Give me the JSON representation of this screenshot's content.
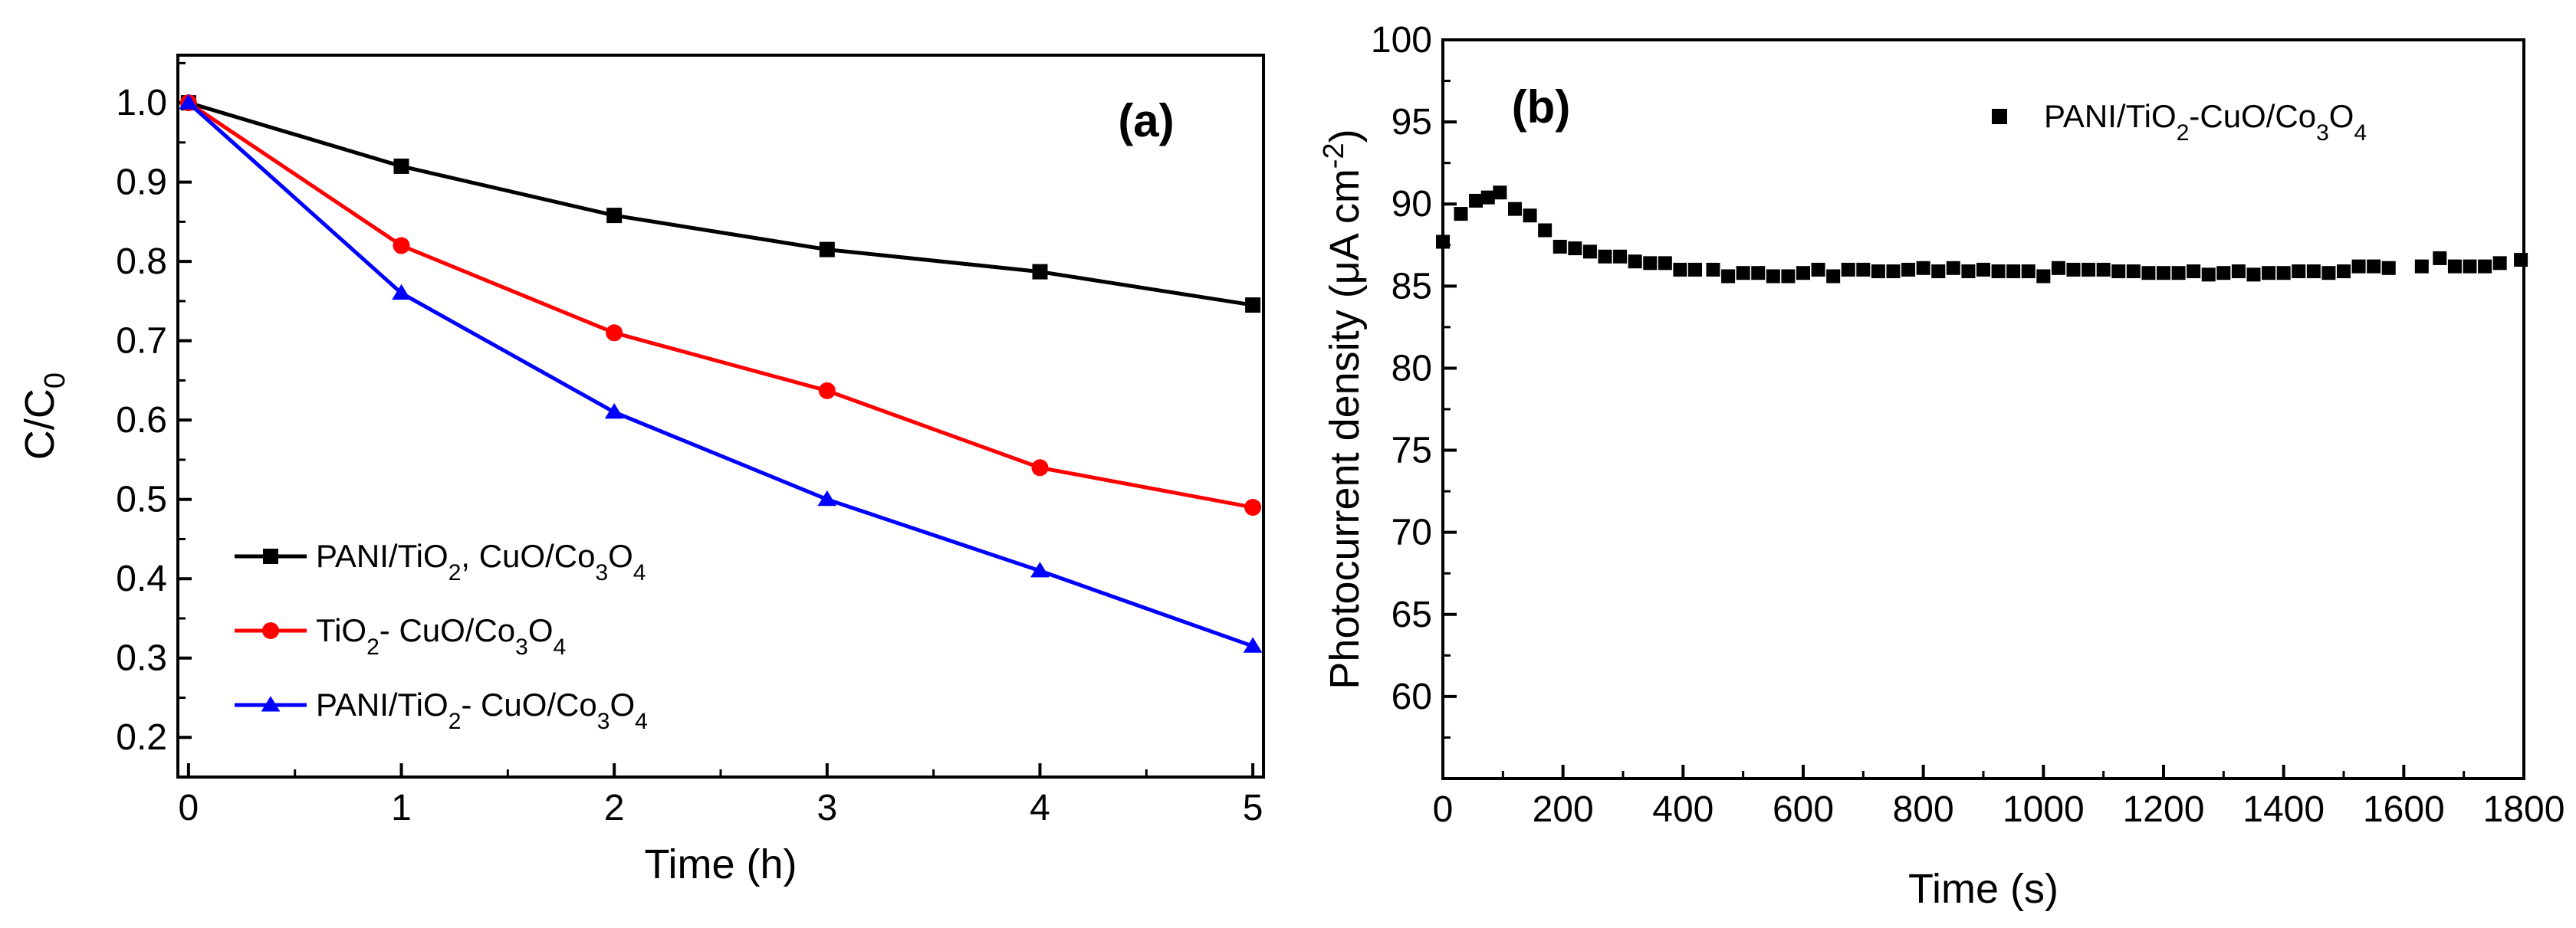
{
  "chart_data": [
    {
      "panel": "(a)",
      "type": "line",
      "xlabel": "Time (h)",
      "ylabel": "C/C0",
      "ylabel_main": "C/C",
      "ylabel_sub": "0",
      "xlim": [
        -0.05,
        5.05
      ],
      "ylim": [
        0.15,
        1.06
      ],
      "xticks": [
        0,
        1,
        2,
        3,
        4,
        5
      ],
      "yticks": [
        0.2,
        0.3,
        0.4,
        0.5,
        0.6,
        0.7,
        0.8,
        0.9,
        1.0
      ],
      "ytick_labels": [
        "0.2",
        "0.3",
        "0.4",
        "0.5",
        "0.6",
        "0.7",
        "0.8",
        "0.9",
        "1.0"
      ],
      "x": [
        0,
        1,
        2,
        3,
        4,
        5
      ],
      "series": [
        {
          "name": "PANI/TiO2, CuO/Co3O4",
          "legend_parts": [
            [
              "PANI/TiO",
              ""
            ],
            [
              "2",
              "sub"
            ],
            [
              ", CuO/Co",
              ""
            ],
            [
              "3",
              "sub"
            ],
            [
              "O",
              ""
            ],
            [
              "4",
              "sub"
            ]
          ],
          "color": "#000000",
          "marker": "square",
          "values": [
            1.0,
            0.92,
            0.858,
            0.815,
            0.787,
            0.745
          ]
        },
        {
          "name": "TiO2- CuO/Co3O4",
          "legend_parts": [
            [
              "TiO",
              ""
            ],
            [
              "2",
              "sub"
            ],
            [
              "- CuO/Co",
              ""
            ],
            [
              "3",
              "sub"
            ],
            [
              "O",
              ""
            ],
            [
              "4",
              "sub"
            ]
          ],
          "color": "#ff0000",
          "marker": "circle",
          "values": [
            1.0,
            0.82,
            0.71,
            0.637,
            0.54,
            0.49
          ]
        },
        {
          "name": "PANI/TiO2- CuO/Co3O4",
          "legend_parts": [
            [
              "PANI/TiO",
              ""
            ],
            [
              "2",
              "sub"
            ],
            [
              "- CuO/Co",
              ""
            ],
            [
              "3",
              "sub"
            ],
            [
              "O",
              ""
            ],
            [
              "4",
              "sub"
            ]
          ],
          "color": "#0000ff",
          "marker": "triangle",
          "values": [
            1.0,
            0.76,
            0.61,
            0.5,
            0.41,
            0.315
          ]
        }
      ]
    },
    {
      "panel": "(b)",
      "type": "scatter",
      "xlabel": "Time (s)",
      "ylabel": "Photocurrent density (μA cm-2)",
      "ylabel_main": "Photocurrent density (μA cm",
      "ylabel_sup": "-2",
      "ylabel_close": ")",
      "xlim": [
        0,
        1800
      ],
      "ylim": [
        55,
        100
      ],
      "xticks": [
        0,
        200,
        400,
        600,
        800,
        1000,
        1200,
        1400,
        1600,
        1800
      ],
      "yticks": [
        60,
        65,
        70,
        75,
        80,
        85,
        90,
        95,
        100
      ],
      "series": [
        {
          "name": "PANI/TiO2-CuO/Co3O4",
          "legend_parts": [
            [
              "PANI/TiO",
              ""
            ],
            [
              "2",
              "sub"
            ],
            [
              "-CuO/Co",
              ""
            ],
            [
              "3",
              "sub"
            ],
            [
              "O",
              ""
            ],
            [
              "4",
              "sub"
            ]
          ],
          "color": "#000000",
          "marker": "square",
          "x": [
            0,
            30,
            55,
            75,
            95,
            120,
            145,
            170,
            195,
            220,
            245,
            270,
            295,
            320,
            345,
            370,
            395,
            420,
            450,
            475,
            500,
            525,
            550,
            575,
            600,
            625,
            650,
            675,
            700,
            725,
            750,
            775,
            800,
            825,
            850,
            875,
            900,
            925,
            950,
            975,
            1000,
            1025,
            1050,
            1075,
            1100,
            1125,
            1150,
            1175,
            1200,
            1225,
            1250,
            1275,
            1300,
            1325,
            1350,
            1375,
            1400,
            1425,
            1450,
            1475,
            1500,
            1525,
            1550,
            1575,
            1630,
            1660,
            1685,
            1710,
            1735,
            1760,
            1795
          ],
          "y": [
            87.7,
            89.4,
            90.2,
            90.4,
            90.7,
            89.7,
            89.3,
            88.4,
            87.4,
            87.3,
            87.1,
            86.8,
            86.8,
            86.5,
            86.4,
            86.4,
            86.0,
            86.0,
            86.0,
            85.6,
            85.8,
            85.8,
            85.6,
            85.6,
            85.8,
            86.0,
            85.6,
            86.0,
            86.0,
            85.9,
            85.9,
            86.0,
            86.1,
            85.9,
            86.1,
            85.9,
            86.0,
            85.9,
            85.9,
            85.9,
            85.6,
            86.1,
            86.0,
            86.0,
            86.0,
            85.9,
            85.9,
            85.8,
            85.8,
            85.8,
            85.9,
            85.7,
            85.8,
            85.9,
            85.7,
            85.8,
            85.8,
            85.9,
            85.9,
            85.8,
            85.9,
            86.2,
            86.2,
            86.1,
            86.2,
            86.7,
            86.2,
            86.2,
            86.2,
            86.4,
            86.6
          ]
        }
      ]
    }
  ]
}
